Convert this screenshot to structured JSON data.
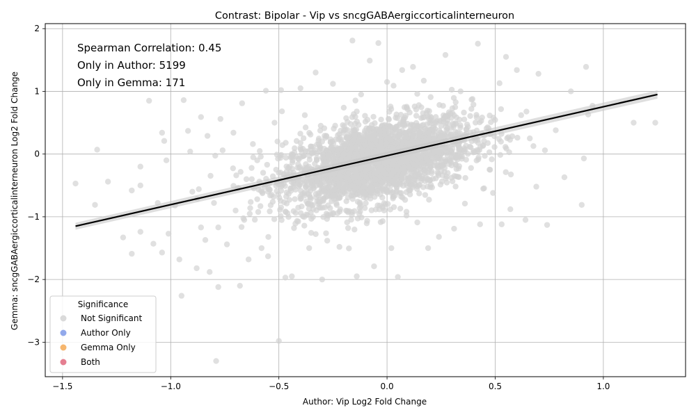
{
  "chart_data": {
    "type": "scatter",
    "title": "Contrast: Bipolar - Vip vs sncgGABAergiccorticalinterneuron",
    "xlabel": "Author: Vip Log2 Fold Change",
    "ylabel": "Gemma: sncgGABAergiccorticalinterneuron Log2 Fold Change",
    "xlim": [
      -1.58,
      1.38
    ],
    "ylim": [
      -3.55,
      2.08
    ],
    "xticks": [
      -1.5,
      -1.0,
      -0.5,
      0.0,
      0.5,
      1.0
    ],
    "xtick_labels": [
      "−1.5",
      "−1.0",
      "−0.5",
      "0.0",
      "0.5",
      "1.0"
    ],
    "yticks": [
      -3,
      -2,
      -1,
      0,
      1,
      2
    ],
    "ytick_labels": [
      "−3",
      "−2",
      "−1",
      "0",
      "1",
      "2"
    ],
    "grid": true,
    "annotations": [
      "Spearman Correlation: 0.45",
      "Only in Author: 5199",
      "Only in Gemma: 171"
    ],
    "regression_line": {
      "x": [
        -1.44,
        1.25
      ],
      "y": [
        -1.15,
        0.95
      ],
      "color": "#000000"
    },
    "legend": {
      "title": "Significance",
      "placement": "lower-left",
      "entries": [
        {
          "name": "Not Significant",
          "color": "#d3d3d3"
        },
        {
          "name": "Author Only",
          "color": "#7f9ae8"
        },
        {
          "name": "Gemma Only",
          "color": "#f5a955"
        },
        {
          "name": "Both",
          "color": "#e0687e"
        }
      ]
    },
    "series": [
      {
        "name": "Not Significant",
        "color": "#d3d3d3",
        "points": [
          [
            -1.44,
            -0.47
          ],
          [
            -1.35,
            -0.81
          ],
          [
            -1.34,
            0.07
          ],
          [
            -1.29,
            -0.44
          ],
          [
            -1.22,
            -1.33
          ],
          [
            -1.18,
            -0.58
          ],
          [
            -1.18,
            -1.59
          ],
          [
            -1.14,
            -0.2
          ],
          [
            -1.14,
            -0.5
          ],
          [
            -1.14,
            -1.24
          ],
          [
            -1.1,
            0.85
          ],
          [
            -1.08,
            -1.43
          ],
          [
            -1.06,
            -0.78
          ],
          [
            -1.04,
            0.34
          ],
          [
            -1.04,
            -1.57
          ],
          [
            -1.03,
            0.21
          ],
          [
            -1.02,
            -0.1
          ],
          [
            -1.01,
            -1.27
          ],
          [
            -0.98,
            -0.82
          ],
          [
            -0.96,
            -1.68
          ],
          [
            -0.94,
            0.86
          ],
          [
            -0.95,
            -2.26
          ],
          [
            -0.92,
            0.37
          ],
          [
            -0.91,
            0.04
          ],
          [
            -0.9,
            -0.6
          ],
          [
            -0.88,
            -1.82
          ],
          [
            -0.87,
            -0.56
          ],
          [
            -0.86,
            0.59
          ],
          [
            -0.86,
            -1.17
          ],
          [
            -0.84,
            -1.37
          ],
          [
            -0.83,
            0.29
          ],
          [
            -0.82,
            -1.88
          ],
          [
            -0.8,
            -0.78
          ],
          [
            -0.79,
            -3.3
          ],
          [
            -0.78,
            -2.12
          ],
          [
            -0.77,
            0.56
          ],
          [
            -0.76,
            0.06
          ],
          [
            -0.74,
            -1.44
          ],
          [
            -0.71,
            0.34
          ],
          [
            -0.7,
            -0.9
          ],
          [
            -0.68,
            -2.1
          ],
          [
            -0.67,
            0.81
          ],
          [
            -0.66,
            -1.05
          ],
          [
            -0.64,
            -1.68
          ],
          [
            -0.62,
            0.16
          ],
          [
            -0.6,
            -0.72
          ],
          [
            -0.58,
            -1.5
          ],
          [
            -0.56,
            1.01
          ],
          [
            -0.55,
            -1.63
          ],
          [
            -0.52,
            0.5
          ],
          [
            -0.5,
            -2.98
          ],
          [
            -0.49,
            1.02
          ],
          [
            -0.47,
            -1.97
          ],
          [
            -0.44,
            -1.95
          ],
          [
            -0.43,
            -1.18
          ],
          [
            -0.4,
            1.05
          ],
          [
            -0.38,
            0.62
          ],
          [
            -0.36,
            -1.5
          ],
          [
            -0.33,
            1.3
          ],
          [
            -0.3,
            -2.0
          ],
          [
            -0.28,
            -0.95
          ],
          [
            -0.25,
            1.12
          ],
          [
            -0.22,
            -1.48
          ],
          [
            -0.2,
            0.74
          ],
          [
            -0.18,
            -1.18
          ],
          [
            -0.16,
            1.81
          ],
          [
            -0.14,
            -1.95
          ],
          [
            -0.12,
            0.95
          ],
          [
            -0.1,
            -0.63
          ],
          [
            -0.08,
            1.49
          ],
          [
            -0.06,
            -1.79
          ],
          [
            -0.04,
            1.77
          ],
          [
            -0.02,
            -1.07
          ],
          [
            0.0,
            1.15
          ],
          [
            0.02,
            -1.5
          ],
          [
            0.04,
            0.58
          ],
          [
            0.05,
            -1.96
          ],
          [
            0.07,
            1.34
          ],
          [
            0.09,
            -0.92
          ],
          [
            0.12,
            1.39
          ],
          [
            0.14,
            -1.09
          ],
          [
            0.17,
            1.17
          ],
          [
            0.19,
            -1.5
          ],
          [
            0.22,
            0.36
          ],
          [
            0.24,
            -1.32
          ],
          [
            0.27,
            1.58
          ],
          [
            0.29,
            0.09
          ],
          [
            0.31,
            -1.19
          ],
          [
            0.34,
            1.0
          ],
          [
            0.36,
            -0.79
          ],
          [
            0.39,
            0.72
          ],
          [
            0.42,
            1.76
          ],
          [
            0.43,
            -1.12
          ],
          [
            0.46,
            0.41
          ],
          [
            0.49,
            -0.62
          ],
          [
            0.52,
            1.13
          ],
          [
            0.53,
            -1.12
          ],
          [
            0.55,
            1.55
          ],
          [
            0.57,
            -0.88
          ],
          [
            0.6,
            1.34
          ],
          [
            0.62,
            0.62
          ],
          [
            0.64,
            -1.05
          ],
          [
            0.66,
            0.25
          ],
          [
            0.7,
            1.28
          ],
          [
            0.69,
            -0.52
          ],
          [
            0.73,
            0.06
          ],
          [
            0.74,
            -1.13
          ],
          [
            0.78,
            0.38
          ],
          [
            0.82,
            -0.37
          ],
          [
            0.85,
            1.0
          ],
          [
            0.9,
            -0.81
          ],
          [
            0.91,
            -0.07
          ],
          [
            0.92,
            1.39
          ],
          [
            0.93,
            0.63
          ],
          [
            0.95,
            0.77
          ],
          [
            1.14,
            0.5
          ],
          [
            1.24,
            0.5
          ],
          [
            -0.45,
            -0.2
          ],
          [
            -0.4,
            0.1
          ],
          [
            -0.35,
            -0.5
          ],
          [
            -0.3,
            0.2
          ],
          [
            -0.25,
            -0.3
          ],
          [
            -0.2,
            0.0
          ],
          [
            -0.15,
            0.3
          ],
          [
            -0.1,
            -0.1
          ],
          [
            -0.05,
            0.4
          ],
          [
            0.0,
            0.0
          ],
          [
            0.05,
            0.2
          ],
          [
            0.1,
            -0.2
          ],
          [
            0.15,
            0.35
          ],
          [
            0.2,
            0.1
          ],
          [
            0.25,
            0.45
          ],
          [
            0.3,
            -0.05
          ],
          [
            0.35,
            0.25
          ],
          [
            -0.55,
            -0.6
          ],
          [
            -0.5,
            -0.3
          ],
          [
            -0.6,
            -0.1
          ],
          [
            -0.65,
            -0.4
          ],
          [
            0.4,
            0.05
          ],
          [
            0.45,
            0.3
          ]
        ]
      }
    ]
  }
}
